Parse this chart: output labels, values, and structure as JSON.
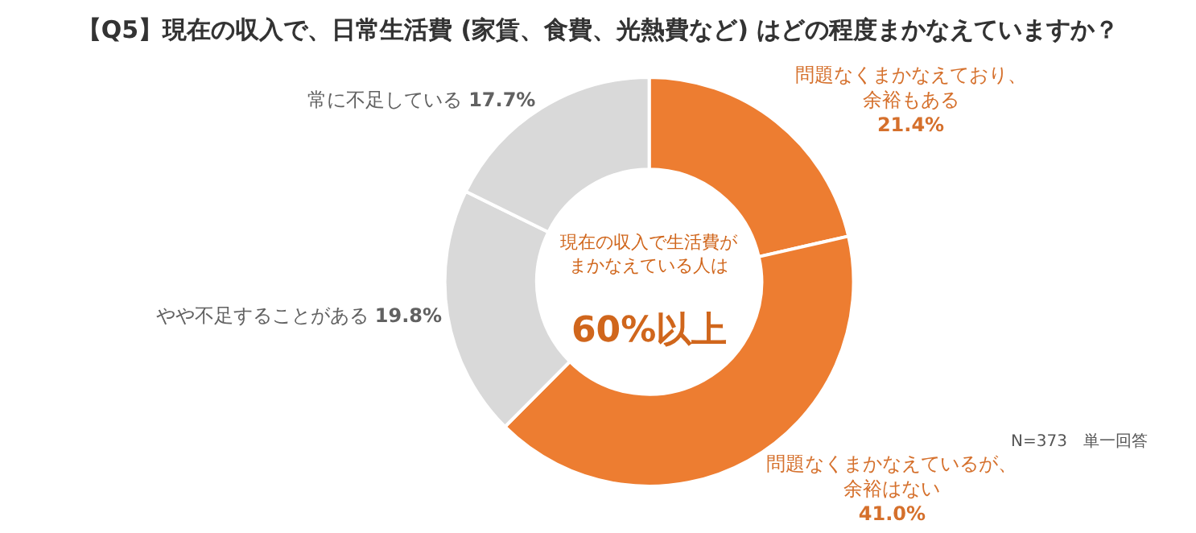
{
  "chart_data": {
    "type": "donut",
    "title": "【Q5】現在の収入で、日常生活費 (家賃、食費、光熱費など) はどの程度まかなえていますか？",
    "categories": [
      "問題なくまかなえており、余裕もある",
      "問題なくまかなえているが、余裕はない",
      "やや不足することがある",
      "常に不足している"
    ],
    "values": [
      21.4,
      41.0,
      19.8,
      17.7
    ],
    "value_labels": [
      "21.4%",
      "41.0%",
      "19.8%",
      "17.7%"
    ],
    "colors": [
      "#ed7d31",
      "#ed7d31",
      "#d9d9d9",
      "#d9d9d9"
    ],
    "annotations": [
      "現在の収入で生活費がまかなえている人は",
      "60%以上",
      "N=373　単一回答"
    ],
    "legend": false
  }
}
